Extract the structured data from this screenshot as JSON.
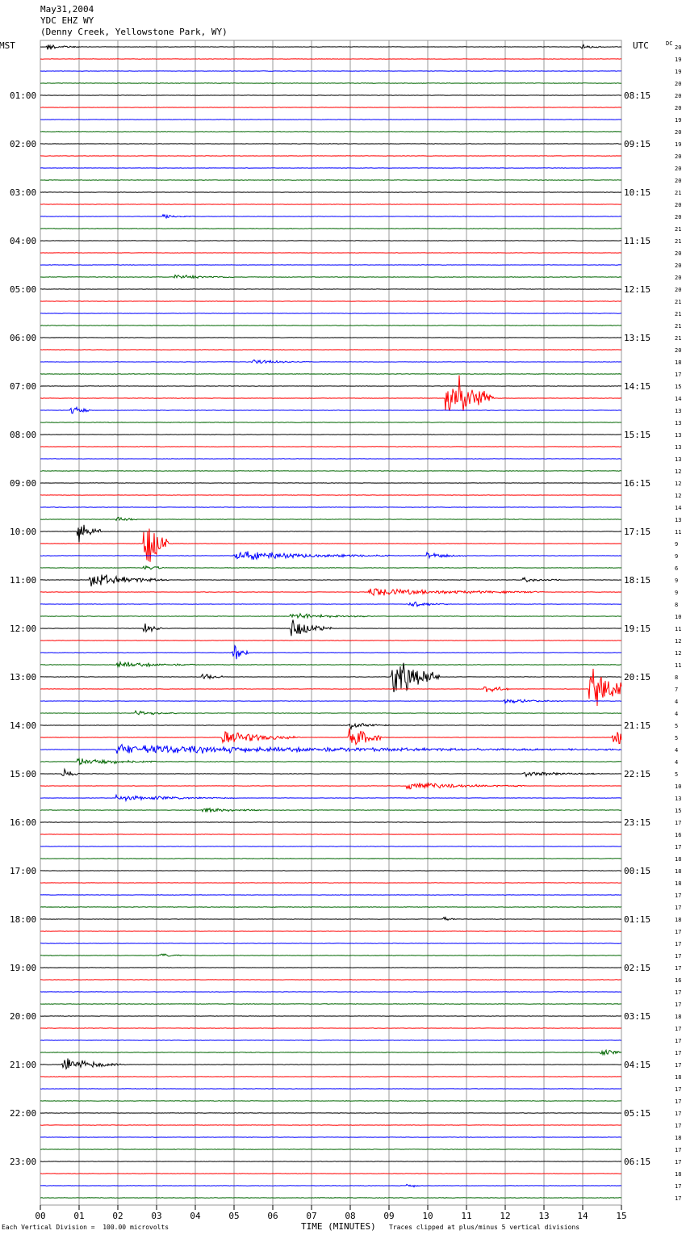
{
  "header": {
    "date": "May31,2004",
    "station": "YDC EHZ WY",
    "location": "(Denny Creek, Yellowstone Park, WY)"
  },
  "left_axis_label": "MST",
  "right_axis_label": "UTC",
  "dc_label": "DC",
  "footer": {
    "scale_note": "Each Vertical Division =  100.00 microvolts",
    "clip_note": "Traces clipped at plus/minus 5 vertical divisions"
  },
  "colors": {
    "trace_cycle": [
      "#000000",
      "#ff0000",
      "#0000ff",
      "#006600"
    ],
    "grid": "#999999"
  },
  "chart_data": {
    "type": "line",
    "xlabel": "TIME (MINUTES)",
    "x_ticks": [
      "00",
      "01",
      "02",
      "03",
      "04",
      "05",
      "06",
      "07",
      "08",
      "09",
      "10",
      "11",
      "12",
      "13",
      "14",
      "15"
    ],
    "xlim": [
      0,
      15
    ],
    "rows_per_hour": 4,
    "hour_labels_left": [
      "",
      "01:00",
      "02:00",
      "03:00",
      "04:00",
      "05:00",
      "06:00",
      "07:00",
      "08:00",
      "09:00",
      "10:00",
      "11:00",
      "12:00",
      "13:00",
      "14:00",
      "15:00",
      "16:00",
      "17:00",
      "18:00",
      "19:00",
      "20:00",
      "21:00",
      "22:00",
      "23:00"
    ],
    "hour_labels_right": [
      "",
      "08:15",
      "09:15",
      "10:15",
      "11:15",
      "12:15",
      "13:15",
      "14:15",
      "15:15",
      "16:15",
      "17:15",
      "18:15",
      "19:15",
      "20:15",
      "21:15",
      "22:15",
      "23:15",
      "00:15",
      "01:15",
      "02:15",
      "03:15",
      "04:15",
      "05:15",
      "06:15"
    ],
    "dc_values": [
      20,
      19,
      19,
      20,
      20,
      20,
      19,
      20,
      19,
      20,
      20,
      20,
      21,
      20,
      20,
      21,
      21,
      20,
      20,
      20,
      20,
      21,
      21,
      21,
      21,
      20,
      18,
      17,
      15,
      14,
      13,
      13,
      13,
      13,
      13,
      12,
      12,
      12,
      14,
      13,
      11,
      9,
      9,
      6,
      9,
      9,
      8,
      10,
      11,
      12,
      12,
      11,
      8,
      7,
      4,
      4,
      5,
      5,
      4,
      4,
      5,
      10,
      13,
      15,
      17,
      16,
      17,
      18,
      18,
      18,
      17,
      17,
      18,
      17,
      17,
      17,
      17,
      16,
      17,
      17,
      18,
      17,
      17,
      17,
      17,
      18,
      17,
      17,
      17,
      17,
      18,
      17,
      17,
      18,
      17,
      17
    ],
    "events": [
      {
        "row": 0,
        "minute": 0.2,
        "amp": 0.4,
        "dur": 0.8
      },
      {
        "row": 0,
        "minute": 14.0,
        "amp": 0.3,
        "dur": 0.6
      },
      {
        "row": 14,
        "minute": 3.2,
        "amp": 0.25,
        "dur": 0.8
      },
      {
        "row": 19,
        "minute": 3.5,
        "amp": 0.3,
        "dur": 1.5
      },
      {
        "row": 26,
        "minute": 5.5,
        "amp": 0.25,
        "dur": 1.5
      },
      {
        "row": 29,
        "minute": 10.5,
        "amp": 4.5,
        "dur": 1.2
      },
      {
        "row": 30,
        "minute": 0.8,
        "amp": 0.8,
        "dur": 0.5
      },
      {
        "row": 39,
        "minute": 2.0,
        "amp": 0.4,
        "dur": 0.5
      },
      {
        "row": 40,
        "minute": 1.0,
        "amp": 1.5,
        "dur": 0.6
      },
      {
        "row": 41,
        "minute": 2.7,
        "amp": 4.0,
        "dur": 0.6
      },
      {
        "row": 42,
        "minute": 5.0,
        "amp": 0.6,
        "dur": 4.0
      },
      {
        "row": 42,
        "minute": 10.0,
        "amp": 0.4,
        "dur": 1.0
      },
      {
        "row": 43,
        "minute": 2.7,
        "amp": 0.4,
        "dur": 0.5
      },
      {
        "row": 44,
        "minute": 1.3,
        "amp": 0.9,
        "dur": 2.0
      },
      {
        "row": 44,
        "minute": 12.5,
        "amp": 0.3,
        "dur": 1.0
      },
      {
        "row": 45,
        "minute": 8.5,
        "amp": 0.5,
        "dur": 4.5
      },
      {
        "row": 46,
        "minute": 9.5,
        "amp": 0.4,
        "dur": 1.0
      },
      {
        "row": 47,
        "minute": 6.5,
        "amp": 0.4,
        "dur": 2.0
      },
      {
        "row": 48,
        "minute": 2.7,
        "amp": 0.6,
        "dur": 0.5
      },
      {
        "row": 48,
        "minute": 6.5,
        "amp": 1.2,
        "dur": 1.0
      },
      {
        "row": 50,
        "minute": 5.0,
        "amp": 1.2,
        "dur": 0.4
      },
      {
        "row": 51,
        "minute": 2.0,
        "amp": 0.4,
        "dur": 2.0
      },
      {
        "row": 52,
        "minute": 4.2,
        "amp": 0.5,
        "dur": 0.5
      },
      {
        "row": 52,
        "minute": 9.1,
        "amp": 3.0,
        "dur": 1.2
      },
      {
        "row": 53,
        "minute": 14.2,
        "amp": 3.5,
        "dur": 1.0
      },
      {
        "row": 53,
        "minute": 11.5,
        "amp": 0.6,
        "dur": 0.6
      },
      {
        "row": 54,
        "minute": 12.0,
        "amp": 0.3,
        "dur": 1.5
      },
      {
        "row": 55,
        "minute": 2.5,
        "amp": 0.4,
        "dur": 1.0
      },
      {
        "row": 56,
        "minute": 8.0,
        "amp": 0.4,
        "dur": 1.0
      },
      {
        "row": 57,
        "minute": 4.7,
        "amp": 0.9,
        "dur": 2.0
      },
      {
        "row": 57,
        "minute": 8.0,
        "amp": 2.0,
        "dur": 0.8
      },
      {
        "row": 57,
        "minute": 14.8,
        "amp": 1.5,
        "dur": 0.4
      },
      {
        "row": 58,
        "minute": 2.0,
        "amp": 0.6,
        "dur": 13.0
      },
      {
        "row": 59,
        "minute": 1.0,
        "amp": 0.5,
        "dur": 2.0
      },
      {
        "row": 60,
        "minute": 0.6,
        "amp": 0.6,
        "dur": 0.4
      },
      {
        "row": 60,
        "minute": 12.5,
        "amp": 0.35,
        "dur": 2.0
      },
      {
        "row": 61,
        "minute": 9.5,
        "amp": 0.45,
        "dur": 3.0
      },
      {
        "row": 62,
        "minute": 2.0,
        "amp": 0.35,
        "dur": 3.0
      },
      {
        "row": 63,
        "minute": 4.2,
        "amp": 0.35,
        "dur": 1.5
      },
      {
        "row": 72,
        "minute": 10.4,
        "amp": 0.3,
        "dur": 0.3
      },
      {
        "row": 75,
        "minute": 3.1,
        "amp": 0.25,
        "dur": 0.6
      },
      {
        "row": 83,
        "minute": 14.5,
        "amp": 0.35,
        "dur": 0.8
      },
      {
        "row": 84,
        "minute": 0.6,
        "amp": 0.9,
        "dur": 1.6
      },
      {
        "row": 94,
        "minute": 9.5,
        "amp": 0.25,
        "dur": 0.4
      }
    ]
  }
}
